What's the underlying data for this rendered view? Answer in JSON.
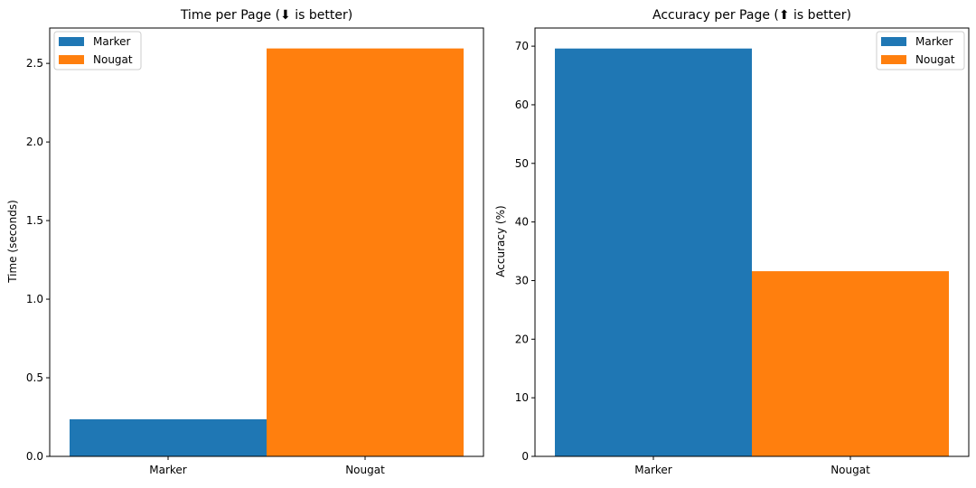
{
  "colors": {
    "marker": "#1f77b4",
    "nougat": "#ff7f0e",
    "axis": "#000000",
    "legend_border": "#cccccc"
  },
  "chart_data": [
    {
      "type": "bar",
      "title": "Time per Page (⬇ is better)",
      "xlabel": "",
      "ylabel": "Time (seconds)",
      "categories": [
        "Marker",
        "Nougat"
      ],
      "values": [
        0.236,
        2.595
      ],
      "ylim": [
        0,
        2.725
      ],
      "yticks": [
        0.0,
        0.5,
        1.0,
        1.5,
        2.0,
        2.5
      ],
      "ytick_labels": [
        "0.0",
        "0.5",
        "1.0",
        "1.5",
        "2.0",
        "2.5"
      ],
      "legend": [
        "Marker",
        "Nougat"
      ],
      "legend_position": "upper-left",
      "grid": false
    },
    {
      "type": "bar",
      "title": "Accuracy per Page (⬆ is better)",
      "xlabel": "",
      "ylabel": "Accuracy (%)",
      "categories": [
        "Marker",
        "Nougat"
      ],
      "values": [
        69.6,
        31.6
      ],
      "ylim": [
        0,
        73.1
      ],
      "yticks": [
        0,
        10,
        20,
        30,
        40,
        50,
        60,
        70
      ],
      "ytick_labels": [
        "0",
        "10",
        "20",
        "30",
        "40",
        "50",
        "60",
        "70"
      ],
      "legend": [
        "Marker",
        "Nougat"
      ],
      "legend_position": "upper-right",
      "grid": false
    }
  ]
}
